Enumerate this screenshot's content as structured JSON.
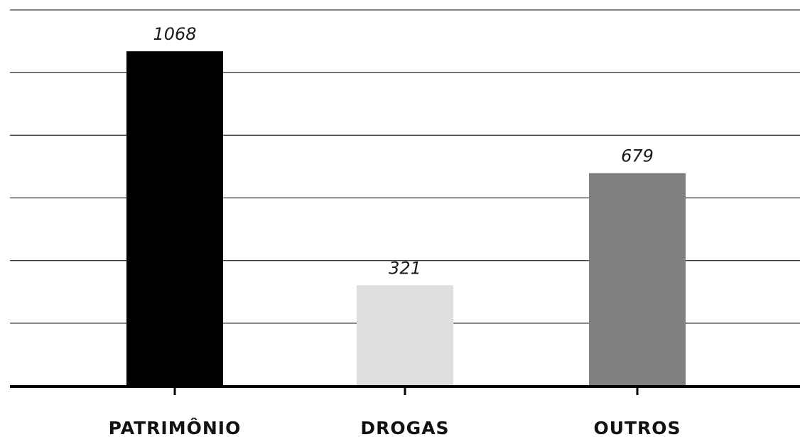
{
  "chart_data": {
    "type": "bar",
    "categories": [
      "PATRIMÔNIO",
      "DROGAS",
      "OUTROS"
    ],
    "values": [
      1068,
      321,
      679
    ],
    "data_labels": [
      "1068",
      "321",
      "679"
    ],
    "colors": [
      "#000000",
      "#dedede",
      "#808080"
    ],
    "ylim": [
      0,
      1200
    ],
    "gridline_step": 200,
    "grid": true,
    "legend": "none",
    "title": "",
    "xlabel": "",
    "ylabel": ""
  }
}
